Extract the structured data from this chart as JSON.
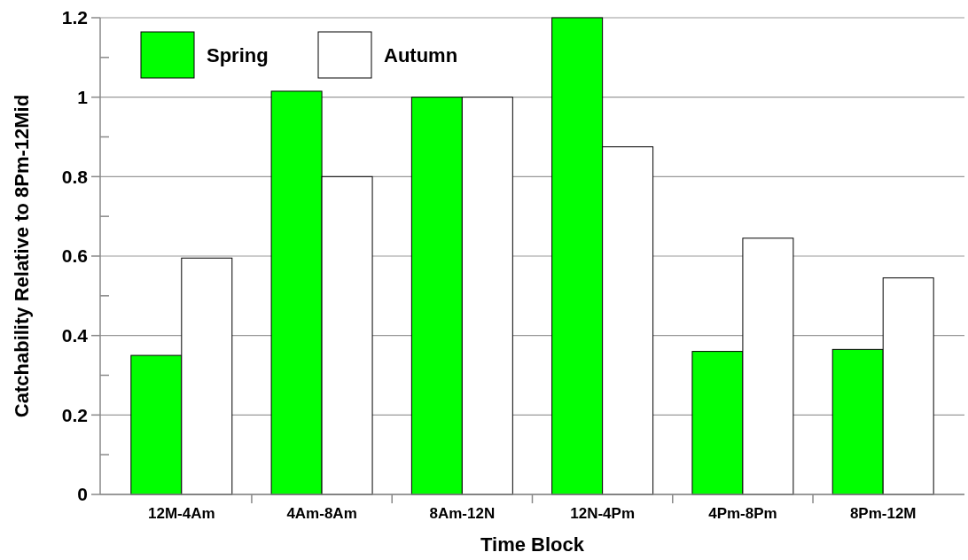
{
  "chart_data": {
    "type": "bar",
    "xlabel": "Time Block",
    "ylabel": "Catchability Relative to 8Pm-12Mid",
    "categories": [
      "12M-4Am",
      "4Am-8Am",
      "8Am-12N",
      "12N-4Pm",
      "4Pm-8Pm",
      "8Pm-12M"
    ],
    "series": [
      {
        "name": "Spring",
        "color": "#00ff00",
        "values": [
          0.35,
          1.015,
          1.0,
          1.2,
          0.36,
          0.365
        ]
      },
      {
        "name": "Autumn",
        "color": "#ffffff",
        "values": [
          0.595,
          0.8,
          1.0,
          0.875,
          0.645,
          0.545
        ]
      }
    ],
    "ylim": [
      0,
      1.2
    ],
    "yticks": [
      0,
      {
        "value": 0.1,
        "label": null
      },
      0.2,
      {
        "value": 0.3,
        "label": null
      },
      0.4,
      {
        "value": 0.5,
        "label": null
      },
      0.6,
      {
        "value": 0.7,
        "label": null
      },
      0.8,
      {
        "value": 0.9,
        "label": null
      },
      1,
      {
        "value": 1.1,
        "label": null
      },
      1.2
    ],
    "grid": "y",
    "legend": "top left"
  }
}
